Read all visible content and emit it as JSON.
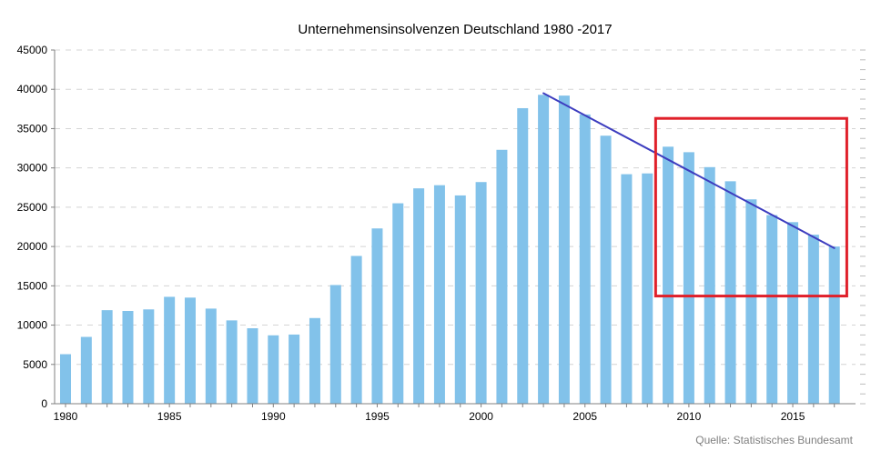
{
  "chart_data": {
    "type": "bar",
    "title": "Unternehmensinsolvenzen Deutschland 1980 -2017",
    "source": "Quelle: Statistisches Bundesamt",
    "xlabel": "",
    "ylabel": "",
    "ylim": [
      0,
      45000
    ],
    "y_ticks": [
      "0",
      "5000",
      "10000",
      "15000",
      "20000",
      "25000",
      "30000",
      "35000",
      "40000",
      "45000"
    ],
    "x_ticks": [
      "1980",
      "1985",
      "1990",
      "1995",
      "2000",
      "2005",
      "2010",
      "2015"
    ],
    "grid": true,
    "legend": "none",
    "bar_color": "#82c2ea",
    "trend_color": "#3d3dbf",
    "highlight_color": "#e0202a",
    "categories": [
      1980,
      1981,
      1982,
      1983,
      1984,
      1985,
      1986,
      1987,
      1988,
      1989,
      1990,
      1991,
      1992,
      1993,
      1994,
      1995,
      1996,
      1997,
      1998,
      1999,
      2000,
      2001,
      2002,
      2003,
      2004,
      2005,
      2006,
      2007,
      2008,
      2009,
      2010,
      2011,
      2012,
      2013,
      2014,
      2015,
      2016,
      2017
    ],
    "values": [
      6300,
      8500,
      11900,
      11800,
      12000,
      13600,
      13500,
      12100,
      10600,
      9600,
      8700,
      8800,
      10900,
      15100,
      18800,
      22300,
      25500,
      27400,
      27800,
      26500,
      28200,
      32300,
      37600,
      39300,
      39200,
      36800,
      34100,
      29200,
      29300,
      32700,
      32000,
      30100,
      28300,
      26000,
      24000,
      23100,
      21500,
      20000
    ],
    "trend_line": {
      "start": {
        "x": 2003,
        "y": 39500
      },
      "end": {
        "x": 2017,
        "y": 19800
      }
    },
    "highlight_box": {
      "x_from": 2008.4,
      "x_to": 2017.6,
      "y_from": 13700,
      "y_to": 36300
    }
  }
}
